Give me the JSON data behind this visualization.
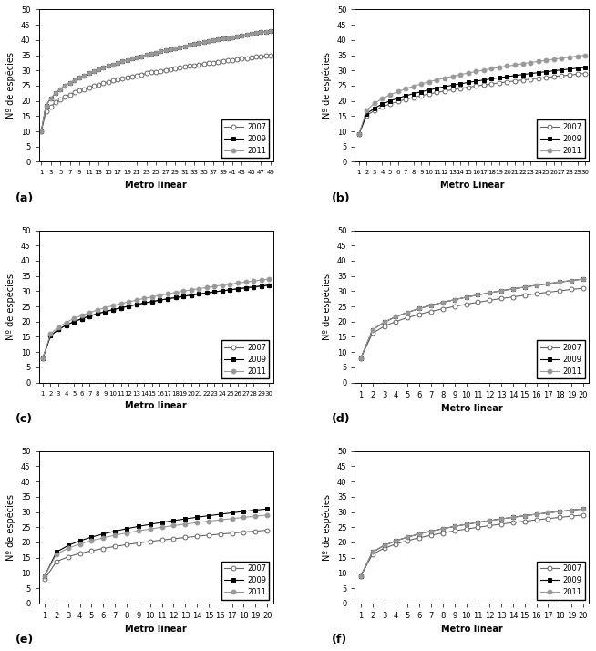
{
  "subplots": [
    {
      "label": "(a)",
      "xlabel": "Metro linear",
      "ylabel": "Nº de espécies",
      "n_points": 49,
      "xtick_step": 2,
      "s2007": 10,
      "e2007": 35,
      "s2009": 10,
      "e2009": 43,
      "s2011": 10,
      "e2011": 43
    },
    {
      "label": "(b)",
      "xlabel": "Metro Linear",
      "ylabel": "Nº de espécies",
      "n_points": 30,
      "xtick_step": 1,
      "s2007": 9,
      "e2007": 29,
      "s2009": 9,
      "e2009": 31,
      "s2011": 9,
      "e2011": 35
    },
    {
      "label": "(c)",
      "xlabel": "Metro linear",
      "ylabel": "Nº de espécies",
      "n_points": 30,
      "xtick_step": 1,
      "s2007": 8,
      "e2007": 32,
      "s2009": 8,
      "e2009": 32,
      "s2011": 8,
      "e2011": 34
    },
    {
      "label": "(d)",
      "xlabel": "Metro linear",
      "ylabel": "Nº de espécies",
      "n_points": 20,
      "xtick_step": 1,
      "s2007": 8,
      "e2007": 31,
      "s2009": 8,
      "e2009": 34,
      "s2011": 8,
      "e2011": 34
    },
    {
      "label": "(e)",
      "xlabel": "Metro linear",
      "ylabel": "Nº de espécies",
      "n_points": 20,
      "xtick_step": 1,
      "s2007": 8,
      "e2007": 24,
      "s2009": 9,
      "e2009": 31,
      "s2011": 9,
      "e2011": 29
    },
    {
      "label": "(f)",
      "xlabel": "Metro linear",
      "ylabel": "Nº de espécies",
      "n_points": 20,
      "xtick_step": 1,
      "s2007": 9,
      "e2007": 29,
      "s2009": 9,
      "e2009": 31,
      "s2011": 9,
      "e2011": 31
    }
  ],
  "ylim": [
    0,
    50
  ],
  "yticks": [
    0,
    5,
    10,
    15,
    20,
    25,
    30,
    35,
    40,
    45,
    50
  ],
  "concavity": 0.35,
  "color_2007": "#666666",
  "color_2009": "#000000",
  "color_2011": "#999999",
  "linewidth": 0.8,
  "markersize": 3.5
}
